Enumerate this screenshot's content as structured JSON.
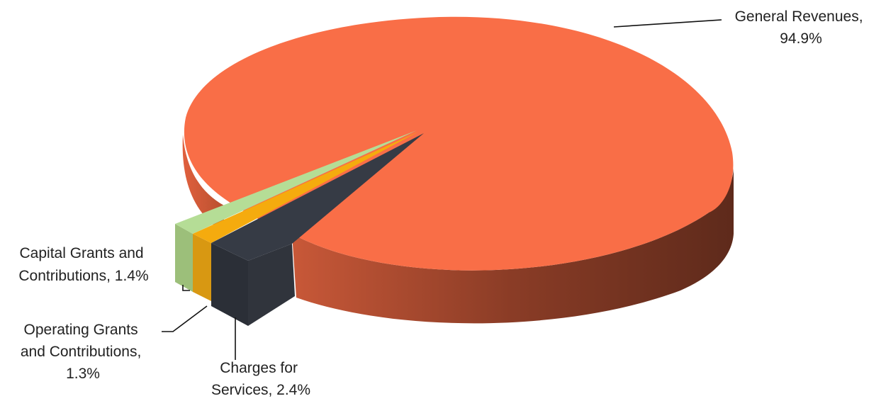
{
  "chart_data": {
    "type": "pie",
    "style": "3d",
    "categories": [
      "General Revenues",
      "Charges for Services",
      "Operating Grants and Contributions",
      "Capital Grants and Contributions"
    ],
    "values": [
      94.9,
      2.4,
      1.3,
      1.4
    ],
    "unit": "%",
    "colors": {
      "General Revenues": "#F96E47",
      "Charges for Services": "#363B45",
      "Operating Grants and Contributions": "#F5AB0E",
      "Capital Grants and Contributions": "#B5DD96"
    },
    "labels": [
      {
        "lines": [
          "General Revenues,",
          "94.9%"
        ]
      },
      {
        "lines": [
          "Charges for",
          "Services, 2.4%"
        ]
      },
      {
        "lines": [
          "Operating Grants",
          "and Contributions,",
          "1.3%"
        ]
      },
      {
        "lines": [
          "Capital Grants and",
          "Contributions,  1.4%"
        ]
      }
    ],
    "legend": "none"
  }
}
